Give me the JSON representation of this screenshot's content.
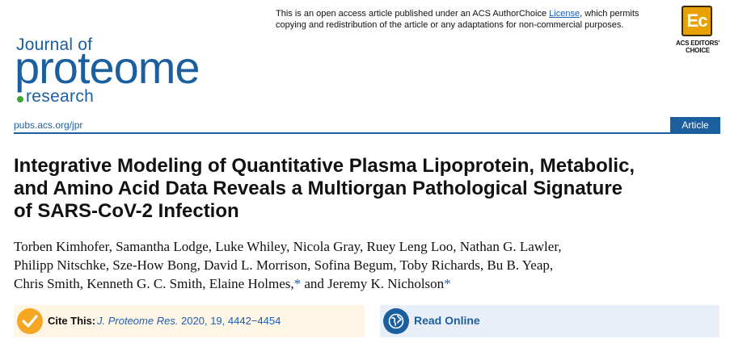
{
  "journal": {
    "name_top": "Journal of",
    "name_main": "proteome",
    "name_bottom": "research",
    "url": "pubs.acs.org/jpr"
  },
  "license": {
    "prefix": "This is an open access article published under an ACS AuthorChoice ",
    "link_text": "License",
    "suffix": ", which permits copying and redistribution of the article or any adaptations for non-commercial purposes."
  },
  "badge": {
    "text": "Ec",
    "label_line1": "ACS EDITORS'",
    "label_line2": "CHOICE"
  },
  "article_type": "Article",
  "title_lines": [
    "Integrative Modeling of Quantitative Plasma Lipoprotein, Metabolic,",
    "and Amino Acid Data Reveals a Multiorgan Pathological Signature",
    "of SARS-CoV-2 Infection"
  ],
  "authors": {
    "line1": "Torben Kimhofer, Samantha Lodge, Luke Whiley, Nicola Gray, Ruey Leng Loo, Nathan G. Lawler,",
    "line2": "Philipp Nitschke, Sze-How Bong, David L. Morrison, Sofina Begum, Toby Richards, Bu B. Yeap,",
    "line3_a": "Chris Smith, Kenneth G. C. Smith, Elaine Holmes,",
    "star": "*",
    "line3_b": " and Jeremy K. Nicholson"
  },
  "cite": {
    "label": "Cite This:",
    "journal_abbrev": "J. Proteome Res.",
    "details": " 2020, 19, 4442−4454"
  },
  "read_online": {
    "label": "Read Online"
  },
  "colors": {
    "brand_blue": "#1b5f9e",
    "accent_green": "#3fa535",
    "badge_orange": "#e9a100",
    "cite_orange": "#f5a623"
  }
}
